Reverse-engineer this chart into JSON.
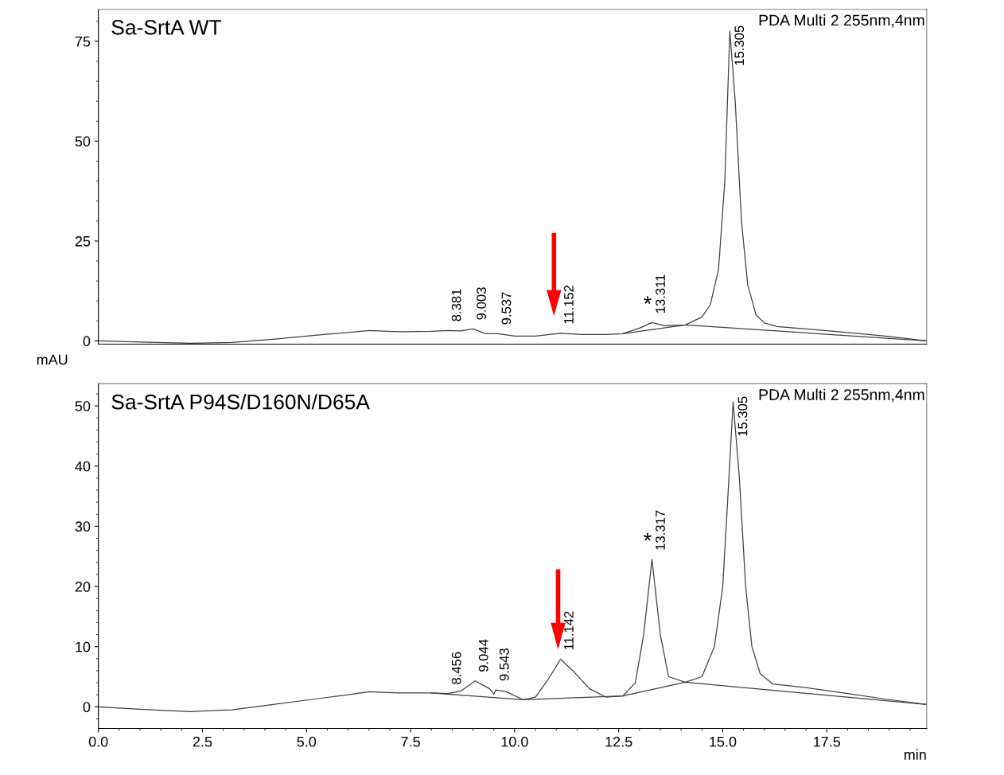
{
  "chart_data": [
    {
      "type": "line",
      "title": "Sa-SrtA WT",
      "ylabel": "mAU",
      "xlim": [
        0,
        19.9
      ],
      "ylim": [
        -0.8,
        83
      ],
      "yticks": [
        0,
        25,
        50,
        75
      ],
      "tick_labels": "y",
      "grid": false,
      "series": [
        {
          "color": "#404040",
          "x": [
            0,
            1,
            2.2,
            3.2,
            4.2,
            5.2,
            6.0,
            6.5,
            7.2,
            8.0,
            8.4,
            8.7,
            9.0,
            9.3,
            9.6,
            10.0,
            10.5,
            11.1,
            11.6,
            12.2,
            12.6,
            13.0,
            13.3,
            13.6,
            14.1,
            14.5,
            14.7,
            14.9,
            15.05,
            15.17,
            15.3,
            15.45,
            15.6,
            15.8,
            16.0,
            16.3,
            17.0,
            18.0,
            19.0,
            19.9
          ],
          "values": [
            0,
            -0.3,
            -0.6,
            -0.4,
            0.4,
            1.4,
            2.1,
            2.6,
            2.3,
            2.4,
            2.6,
            2.5,
            3.0,
            1.8,
            1.8,
            1.2,
            1.2,
            1.9,
            1.6,
            1.6,
            1.8,
            3.2,
            4.6,
            3.8,
            4.0,
            6.0,
            9,
            18,
            40,
            77.6,
            60,
            30,
            14,
            6.5,
            4.5,
            3.6,
            3.0,
            2.1,
            1.1,
            0
          ]
        },
        {
          "color": "#404040",
          "x": [
            12.6,
            14.1,
            19.9
          ],
          "values": [
            1.8,
            4.0,
            0
          ]
        }
      ],
      "annotations": [
        {
          "text": "8.381",
          "x": 8.4,
          "y": 2.6
        },
        {
          "text": "9.003",
          "x": 9.0,
          "y": 3.0
        },
        {
          "text": "9.537",
          "x": 9.6,
          "y": 1.8
        },
        {
          "text": "11.152",
          "x": 11.1,
          "y": 1.9
        },
        {
          "text": "13.311",
          "x": 13.3,
          "y": 4.6
        },
        {
          "text": "15.305",
          "x": 15.17,
          "y": 77.6
        },
        {
          "text": "*",
          "x": 13.3,
          "y": 4.6
        },
        "PDA Multi 2 255nm,4nm"
      ]
    },
    {
      "type": "line",
      "title": "Sa-SrtA P94S/D160N/D65A",
      "xlabel": "min",
      "xlim": [
        0,
        19.9
      ],
      "ylim": [
        -3.6,
        53.7
      ],
      "xticks": [
        {
          "value": 0,
          "label": "0.0"
        },
        2.5,
        {
          "value": 5,
          "label": "5.0"
        },
        7.5,
        {
          "value": 10,
          "label": "10.0"
        },
        12.5,
        {
          "value": 15,
          "label": "15.0"
        },
        17.5
      ],
      "yticks": [
        0,
        10,
        20,
        30,
        40,
        50
      ],
      "grid": false,
      "series": [
        {
          "color": "#404040",
          "x": [
            0,
            1,
            2.2,
            3.2,
            4.2,
            5.2,
            6.0,
            6.5,
            7.2,
            8.0,
            8.4,
            8.7,
            9.05,
            9.4,
            9.5,
            9.55,
            9.8,
            10.2,
            10.5,
            10.8,
            11.1,
            11.4,
            11.8,
            12.2,
            12.6,
            12.9,
            13.1,
            13.3,
            13.5,
            13.7,
            14.1,
            14.5,
            14.8,
            15.0,
            15.1,
            15.25,
            15.4,
            15.55,
            15.7,
            15.9,
            16.2,
            17.0,
            18.0,
            19.0,
            19.9
          ],
          "values": [
            0,
            -0.4,
            -0.8,
            -0.5,
            0.4,
            1.3,
            2.0,
            2.5,
            2.3,
            2.3,
            2.2,
            2.6,
            4.3,
            3.0,
            2.1,
            2.8,
            2.5,
            1.2,
            1.6,
            4.5,
            7.9,
            6.0,
            3.0,
            1.6,
            1.8,
            4.0,
            12,
            24.5,
            12,
            5.0,
            4.1,
            5.0,
            10,
            20,
            32,
            50.7,
            38,
            20,
            10,
            5.5,
            3.8,
            3.2,
            2.2,
            1.2,
            0.4
          ]
        },
        {
          "color": "#404040",
          "x": [
            8.0,
            10.2,
            12.6,
            14.1,
            19.9
          ],
          "values": [
            2.3,
            1.2,
            1.8,
            4.1,
            0.4
          ]
        }
      ],
      "annotations": [
        {
          "text": "8.456",
          "x": 8.4,
          "y": 2.2
        },
        {
          "text": "9.044",
          "x": 9.05,
          "y": 4.3
        },
        {
          "text": "9.543",
          "x": 9.55,
          "y": 2.8
        },
        {
          "text": "11.142",
          "x": 11.1,
          "y": 7.9
        },
        {
          "text": "13.317",
          "x": 13.3,
          "y": 24.5
        },
        {
          "text": "15.305",
          "x": 15.25,
          "y": 50.7
        },
        {
          "text": "*",
          "x": 13.3,
          "y": 24.5
        },
        "PDA Multi 2 255nm,4nm"
      ]
    }
  ]
}
